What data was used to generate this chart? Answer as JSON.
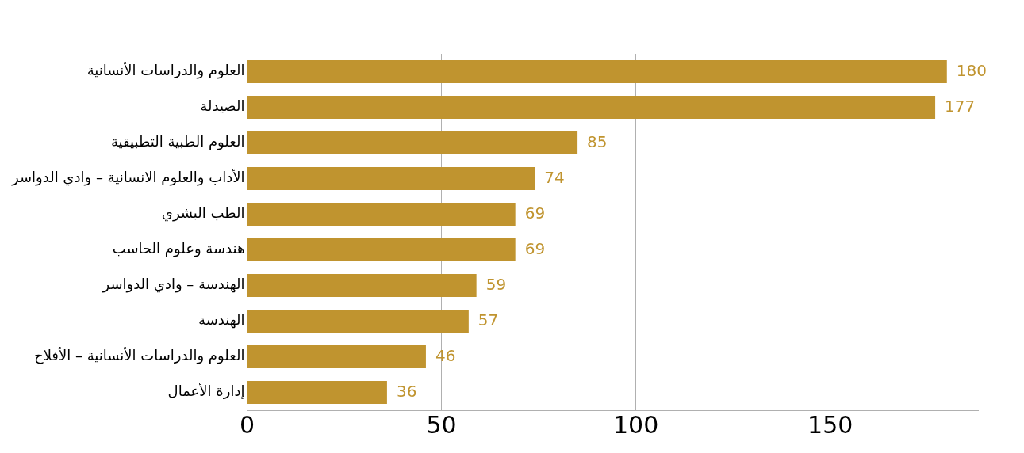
{
  "chart_data": {
    "type": "bar",
    "orientation": "horizontal",
    "categories": [
      "العلوم والدراسات الأنسانية",
      "الصيدلة",
      "العلوم الطبية التطبيقية",
      "الأداب والعلوم الانسانية – وادي الدواسر",
      "الطب البشري",
      "هندسة وعلوم الحاسب",
      "الهندسة – وادي الدواسر",
      "الهندسة",
      "العلوم والدراسات الأنسانية – الأفلاج",
      "إدارة الأعمال"
    ],
    "values": [
      180,
      177,
      85,
      74,
      69,
      69,
      59,
      57,
      46,
      36
    ],
    "color": "#c0942f",
    "xlim": [
      0,
      188
    ],
    "xticks": [
      0,
      50,
      100,
      150
    ],
    "grid": "x",
    "data_labels": true,
    "legend": false
  }
}
